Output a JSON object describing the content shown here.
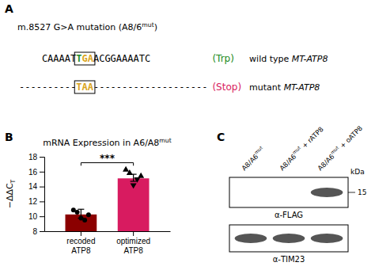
{
  "chart_data": [
    {
      "type": "sequence",
      "title": [
        "m.8527 G>A mutation (A8/6",
        "mut",
        ")"
      ],
      "series": [
        {
          "name": [
            "wild type ",
            "MT-ATP8"
          ],
          "annotations": [
            "CAAAAT",
            "T",
            "GA",
            "ACGGAAAATC",
            " (Trp)"
          ],
          "colors": [
            "black",
            "#228B22",
            "#DAA520",
            "black",
            "#228B22"
          ]
        },
        {
          "name": [
            "mutant ",
            "MT-ATP8"
          ],
          "annotations": [
            "----------",
            "TAA",
            "--------------------",
            "(Stop)"
          ],
          "colors": [
            "black",
            "#DAA520",
            "black",
            "#D81B60"
          ]
        }
      ],
      "annotations": [
        {
          "text": "A"
        }
      ]
    },
    {
      "type": "bar",
      "title": [
        "mRNA Expression in A6/A8",
        "mut"
      ],
      "y_label": [
        "−ΔΔC",
        "T"
      ],
      "categories": [
        "recoded\nATP8",
        "optimized\nATP8"
      ],
      "values": [
        10.25,
        15.1
      ],
      "colors": [
        "#8B0000",
        "#D81B60"
      ],
      "error_low": [
        0.5,
        0.4
      ],
      "error_high": [
        0.7,
        0.55
      ],
      "points": [
        {
          "values": [
            10.85,
            10.55,
            9.75,
            9.5,
            10.2
          ],
          "marker": [
            "circle",
            "circle",
            "circle",
            "circle",
            "circle"
          ]
        },
        {
          "values": [
            16.25,
            15.8,
            14.2,
            15.0,
            15.4
          ],
          "marker": [
            "triangle-up",
            "triangle-up",
            "triangle-down",
            "triangle-down",
            "triangle-up"
          ]
        }
      ],
      "ylim": [
        8,
        18
      ],
      "yticks": [
        8,
        10,
        12,
        14,
        16,
        18
      ],
      "annotations": [
        {
          "text": "B"
        },
        {
          "text": "***",
          "y": 17.2,
          "y_end": 16.8
        }
      ]
    },
    {
      "type": "blot",
      "categories": [
        [
          "A8/A6",
          "mut"
        ],
        [
          "A8/A6",
          "mut",
          " + rATP8"
        ],
        [
          "A8/A6",
          "mut",
          " + oATP8"
        ]
      ],
      "y_label": "kDa",
      "yticks": [
        15
      ],
      "series": [
        {
          "name": "α-FLAG",
          "values": [
            false,
            false,
            true
          ],
          "color": "#555555"
        },
        {
          "name": "α-TIM23",
          "values": [
            true,
            true,
            true
          ],
          "color": "#555555"
        }
      ],
      "annotations": [
        {
          "text": "C"
        }
      ]
    }
  ]
}
